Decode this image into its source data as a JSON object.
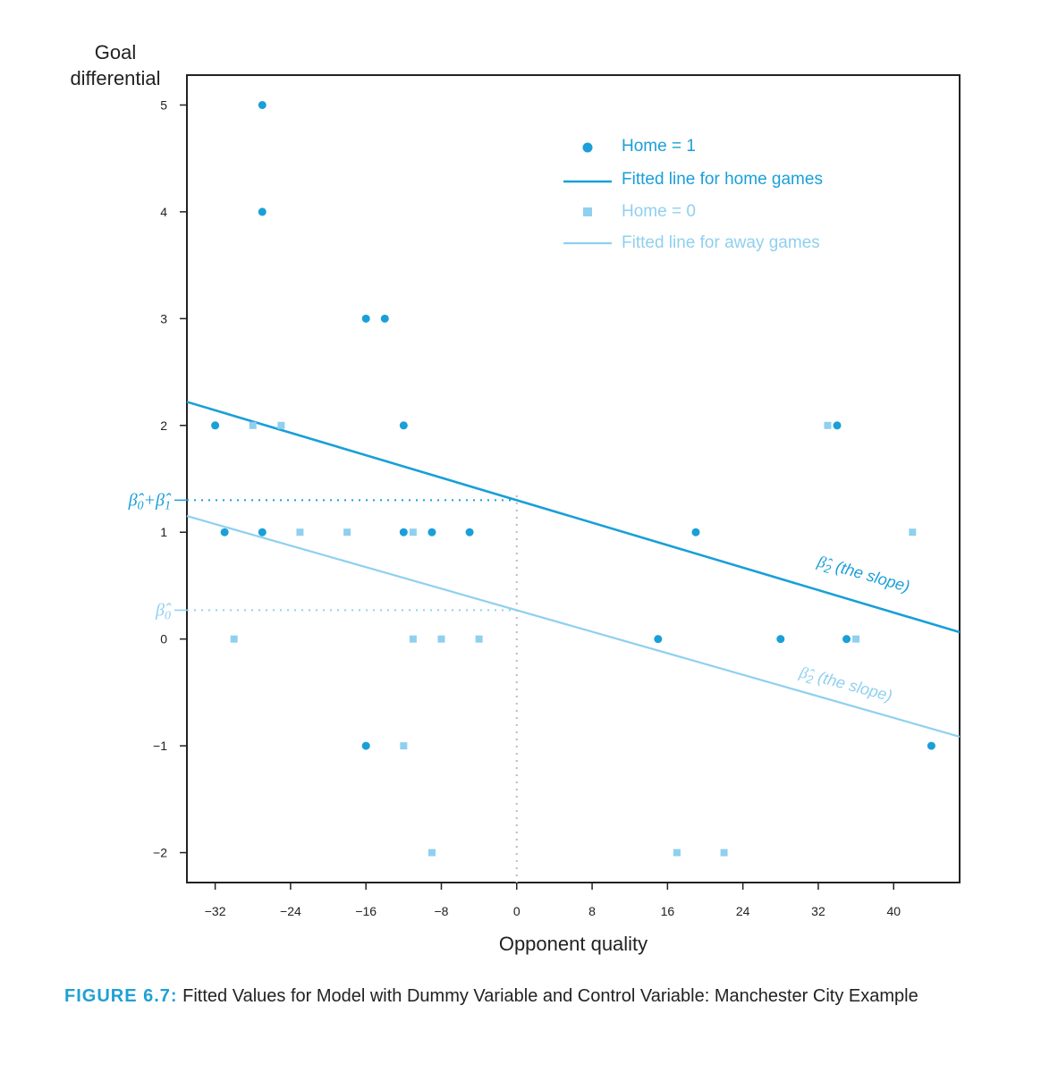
{
  "chart_data": {
    "type": "scatter",
    "ylabel": [
      "Goal",
      "differential"
    ],
    "xlabel": "Opponent quality",
    "xlim": [
      -35,
      47
    ],
    "ylim": [
      -2.28,
      5.28
    ],
    "x_ticks": [
      -32,
      -24,
      -16,
      -8,
      0,
      8,
      16,
      24,
      32,
      40
    ],
    "x_tick_labels": [
      "−32",
      "−24",
      "−16",
      "−8",
      "0",
      "8",
      "16",
      "24",
      "32",
      "40"
    ],
    "y_ticks": [
      5,
      4,
      3,
      2,
      1,
      0,
      -1,
      -2
    ],
    "y_tick_labels": [
      "5",
      "4",
      "3",
      "2",
      "1",
      "0",
      "−1",
      "−2"
    ],
    "grid": false,
    "legend_position": "top-right",
    "colors": {
      "home": "#1a9fd8",
      "away": "#8fd0ef"
    },
    "series": [
      {
        "name": "Home = 1",
        "marker": "circle",
        "points": [
          [
            -27,
            5
          ],
          [
            -27,
            4
          ],
          [
            -16,
            3
          ],
          [
            -14,
            3
          ],
          [
            -32,
            2
          ],
          [
            -12,
            2
          ],
          [
            34,
            2
          ],
          [
            -31,
            1
          ],
          [
            -27,
            1
          ],
          [
            -12,
            1
          ],
          [
            -9,
            1
          ],
          [
            -5,
            1
          ],
          [
            19,
            1
          ],
          [
            15,
            0
          ],
          [
            28,
            0
          ],
          [
            35,
            0
          ],
          [
            -16,
            -1
          ],
          [
            44,
            -1
          ]
        ]
      },
      {
        "name": "Home = 0",
        "marker": "square",
        "points": [
          [
            -28,
            2
          ],
          [
            -25,
            2
          ],
          [
            33,
            2
          ],
          [
            -23,
            1
          ],
          [
            -18,
            1
          ],
          [
            -11,
            1
          ],
          [
            42,
            1
          ],
          [
            -30,
            0
          ],
          [
            -11,
            0
          ],
          [
            -8,
            0
          ],
          [
            -4,
            0
          ],
          [
            36,
            0
          ],
          [
            -12,
            -1
          ],
          [
            -9,
            -2
          ],
          [
            17,
            -2
          ],
          [
            22,
            -2
          ]
        ]
      },
      {
        "name": "Fitted line for home games",
        "type": "line",
        "intercept": 1.3,
        "slope": -0.0263
      },
      {
        "name": "Fitted line for away games",
        "type": "line",
        "intercept": 0.27,
        "slope": -0.0252
      }
    ],
    "reference_lines": [
      {
        "label_terms": [
          "β̂",
          "0",
          "+",
          "β̂",
          "1"
        ],
        "y": 1.3
      },
      {
        "label_terms": [
          "β̂",
          "0"
        ],
        "y": 0.27
      }
    ],
    "annotations": [
      {
        "symbol": "β̂",
        "subscript": "2",
        "text": "(the slope)",
        "series": "home"
      },
      {
        "symbol": "β̂",
        "subscript": "2",
        "text": "(the slope)",
        "series": "away"
      }
    ]
  },
  "caption": {
    "figure_label": "FIGURE 6.7:",
    "text": "Fitted Values for Model with Dummy Variable and Control Variable: Manchester City Example"
  }
}
